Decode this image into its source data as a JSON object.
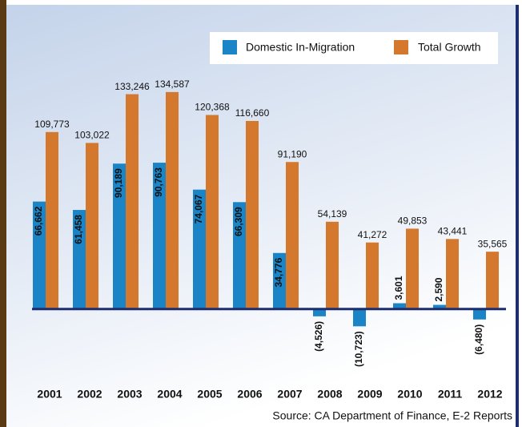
{
  "chart_data": {
    "type": "bar",
    "categories": [
      "2001",
      "2002",
      "2003",
      "2004",
      "2005",
      "2006",
      "2007",
      "2008",
      "2009",
      "2010",
      "2011",
      "2012"
    ],
    "series": [
      {
        "name": "Domestic In-Migration",
        "color": "#1a84c6",
        "values": [
          66662,
          61458,
          90189,
          90763,
          74067,
          66309,
          34776,
          -4526,
          -10723,
          3601,
          2590,
          -6480
        ],
        "value_labels": [
          "66,662",
          "61,458",
          "90,189",
          "90,763",
          "74,067",
          "66,309",
          "34,776",
          "(4,526)",
          "(10,723)",
          "3,601",
          "2,590",
          "(6,480)"
        ]
      },
      {
        "name": "Total Growth",
        "color": "#d4782e",
        "values": [
          109773,
          103022,
          133246,
          134587,
          120368,
          116660,
          91190,
          54139,
          41272,
          49853,
          43441,
          35565
        ],
        "value_labels": [
          "109,773",
          "103,022",
          "133,246",
          "134,587",
          "120,368",
          "116,660",
          "91,190",
          "54,139",
          "41,272",
          "49,853",
          "43,441",
          "35,565"
        ]
      }
    ],
    "ylim": [
      -20000,
      140000
    ],
    "source": "Source:  CA Department of Finance, E-2 Reports"
  }
}
